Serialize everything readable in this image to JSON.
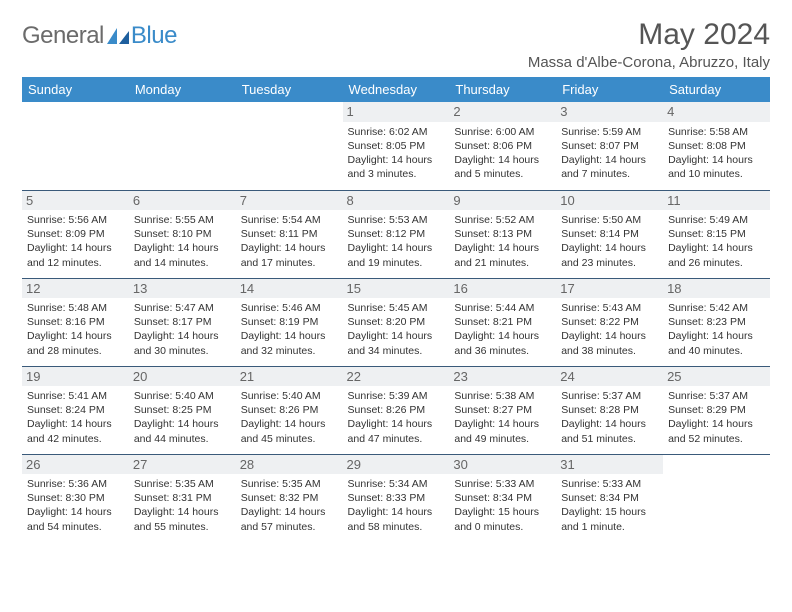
{
  "logo": {
    "text1": "General",
    "text2": "Blue"
  },
  "header": {
    "month_title": "May 2024",
    "location": "Massa d'Albe-Corona, Abruzzo, Italy"
  },
  "colors": {
    "header_bg": "#3a8bc9",
    "header_fg": "#ffffff",
    "daynum_bg": "#eef0f2",
    "border": "#3a5a7a"
  },
  "weekdays": [
    "Sunday",
    "Monday",
    "Tuesday",
    "Wednesday",
    "Thursday",
    "Friday",
    "Saturday"
  ],
  "weeks": [
    [
      null,
      null,
      null,
      {
        "n": "1",
        "sr": "Sunrise: 6:02 AM",
        "ss": "Sunset: 8:05 PM",
        "dl": "Daylight: 14 hours and 3 minutes."
      },
      {
        "n": "2",
        "sr": "Sunrise: 6:00 AM",
        "ss": "Sunset: 8:06 PM",
        "dl": "Daylight: 14 hours and 5 minutes."
      },
      {
        "n": "3",
        "sr": "Sunrise: 5:59 AM",
        "ss": "Sunset: 8:07 PM",
        "dl": "Daylight: 14 hours and 7 minutes."
      },
      {
        "n": "4",
        "sr": "Sunrise: 5:58 AM",
        "ss": "Sunset: 8:08 PM",
        "dl": "Daylight: 14 hours and 10 minutes."
      }
    ],
    [
      {
        "n": "5",
        "sr": "Sunrise: 5:56 AM",
        "ss": "Sunset: 8:09 PM",
        "dl": "Daylight: 14 hours and 12 minutes."
      },
      {
        "n": "6",
        "sr": "Sunrise: 5:55 AM",
        "ss": "Sunset: 8:10 PM",
        "dl": "Daylight: 14 hours and 14 minutes."
      },
      {
        "n": "7",
        "sr": "Sunrise: 5:54 AM",
        "ss": "Sunset: 8:11 PM",
        "dl": "Daylight: 14 hours and 17 minutes."
      },
      {
        "n": "8",
        "sr": "Sunrise: 5:53 AM",
        "ss": "Sunset: 8:12 PM",
        "dl": "Daylight: 14 hours and 19 minutes."
      },
      {
        "n": "9",
        "sr": "Sunrise: 5:52 AM",
        "ss": "Sunset: 8:13 PM",
        "dl": "Daylight: 14 hours and 21 minutes."
      },
      {
        "n": "10",
        "sr": "Sunrise: 5:50 AM",
        "ss": "Sunset: 8:14 PM",
        "dl": "Daylight: 14 hours and 23 minutes."
      },
      {
        "n": "11",
        "sr": "Sunrise: 5:49 AM",
        "ss": "Sunset: 8:15 PM",
        "dl": "Daylight: 14 hours and 26 minutes."
      }
    ],
    [
      {
        "n": "12",
        "sr": "Sunrise: 5:48 AM",
        "ss": "Sunset: 8:16 PM",
        "dl": "Daylight: 14 hours and 28 minutes."
      },
      {
        "n": "13",
        "sr": "Sunrise: 5:47 AM",
        "ss": "Sunset: 8:17 PM",
        "dl": "Daylight: 14 hours and 30 minutes."
      },
      {
        "n": "14",
        "sr": "Sunrise: 5:46 AM",
        "ss": "Sunset: 8:19 PM",
        "dl": "Daylight: 14 hours and 32 minutes."
      },
      {
        "n": "15",
        "sr": "Sunrise: 5:45 AM",
        "ss": "Sunset: 8:20 PM",
        "dl": "Daylight: 14 hours and 34 minutes."
      },
      {
        "n": "16",
        "sr": "Sunrise: 5:44 AM",
        "ss": "Sunset: 8:21 PM",
        "dl": "Daylight: 14 hours and 36 minutes."
      },
      {
        "n": "17",
        "sr": "Sunrise: 5:43 AM",
        "ss": "Sunset: 8:22 PM",
        "dl": "Daylight: 14 hours and 38 minutes."
      },
      {
        "n": "18",
        "sr": "Sunrise: 5:42 AM",
        "ss": "Sunset: 8:23 PM",
        "dl": "Daylight: 14 hours and 40 minutes."
      }
    ],
    [
      {
        "n": "19",
        "sr": "Sunrise: 5:41 AM",
        "ss": "Sunset: 8:24 PM",
        "dl": "Daylight: 14 hours and 42 minutes."
      },
      {
        "n": "20",
        "sr": "Sunrise: 5:40 AM",
        "ss": "Sunset: 8:25 PM",
        "dl": "Daylight: 14 hours and 44 minutes."
      },
      {
        "n": "21",
        "sr": "Sunrise: 5:40 AM",
        "ss": "Sunset: 8:26 PM",
        "dl": "Daylight: 14 hours and 45 minutes."
      },
      {
        "n": "22",
        "sr": "Sunrise: 5:39 AM",
        "ss": "Sunset: 8:26 PM",
        "dl": "Daylight: 14 hours and 47 minutes."
      },
      {
        "n": "23",
        "sr": "Sunrise: 5:38 AM",
        "ss": "Sunset: 8:27 PM",
        "dl": "Daylight: 14 hours and 49 minutes."
      },
      {
        "n": "24",
        "sr": "Sunrise: 5:37 AM",
        "ss": "Sunset: 8:28 PM",
        "dl": "Daylight: 14 hours and 51 minutes."
      },
      {
        "n": "25",
        "sr": "Sunrise: 5:37 AM",
        "ss": "Sunset: 8:29 PM",
        "dl": "Daylight: 14 hours and 52 minutes."
      }
    ],
    [
      {
        "n": "26",
        "sr": "Sunrise: 5:36 AM",
        "ss": "Sunset: 8:30 PM",
        "dl": "Daylight: 14 hours and 54 minutes."
      },
      {
        "n": "27",
        "sr": "Sunrise: 5:35 AM",
        "ss": "Sunset: 8:31 PM",
        "dl": "Daylight: 14 hours and 55 minutes."
      },
      {
        "n": "28",
        "sr": "Sunrise: 5:35 AM",
        "ss": "Sunset: 8:32 PM",
        "dl": "Daylight: 14 hours and 57 minutes."
      },
      {
        "n": "29",
        "sr": "Sunrise: 5:34 AM",
        "ss": "Sunset: 8:33 PM",
        "dl": "Daylight: 14 hours and 58 minutes."
      },
      {
        "n": "30",
        "sr": "Sunrise: 5:33 AM",
        "ss": "Sunset: 8:34 PM",
        "dl": "Daylight: 15 hours and 0 minutes."
      },
      {
        "n": "31",
        "sr": "Sunrise: 5:33 AM",
        "ss": "Sunset: 8:34 PM",
        "dl": "Daylight: 15 hours and 1 minute."
      },
      null
    ]
  ]
}
